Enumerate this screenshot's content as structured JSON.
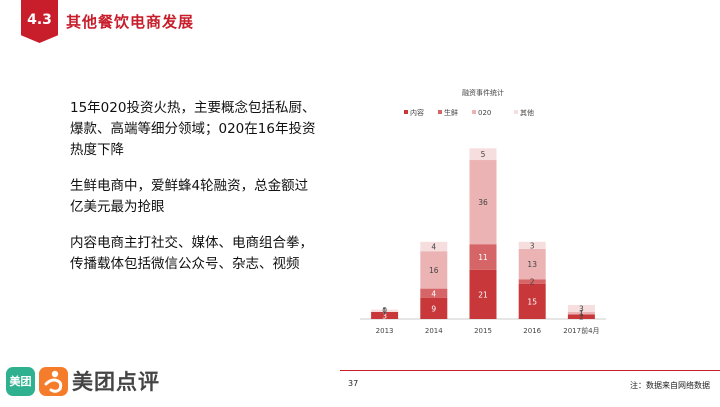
{
  "header": {
    "section_number": "4.3",
    "title": "其他餐饮电商发展"
  },
  "bullets": [
    "15年020投资火热，主要概念包括私厨、爆款、高端等细分领域；020在16年投资热度下降",
    "生鲜电商中，爱鲜蜂4轮融资，总金额过亿美元最为抢眼",
    "内容电商主打社交、媒体、电商组合拳，传播载体包括微信公众号、杂志、视频"
  ],
  "footer": {
    "page_number": "37",
    "source_note": "注：数据来自网络数据"
  },
  "logo": {
    "icon_text": "美团",
    "brand_text": "美团点评"
  },
  "chart_data": {
    "type": "bar",
    "stacked": true,
    "title": "融资事件统计",
    "categories": [
      "2013",
      "2014",
      "2015",
      "2016",
      "2017前4月"
    ],
    "series": [
      {
        "name": "内容",
        "color": "#c8373a",
        "values": [
          3,
          9,
          21,
          15,
          2
        ]
      },
      {
        "name": "生鲜",
        "color": "#d66567",
        "values": [
          0,
          4,
          11,
          2,
          0
        ]
      },
      {
        "name": "020",
        "color": "#ebb3b3",
        "values": [
          0,
          16,
          36,
          13,
          1
        ]
      },
      {
        "name": "其他",
        "color": "#f7dede",
        "values": [
          1,
          4,
          5,
          3,
          3
        ]
      }
    ],
    "data_labels": [
      [
        "3",
        "9",
        "21",
        "15",
        "2"
      ],
      [
        "0",
        "4",
        "11",
        "2",
        ""
      ],
      [
        "",
        "16",
        "36",
        "13",
        "1"
      ],
      [
        "1",
        "4",
        "5",
        "3",
        "3"
      ]
    ],
    "legend_position": "top-left",
    "grid": false,
    "ylim": [
      0,
      74
    ]
  }
}
